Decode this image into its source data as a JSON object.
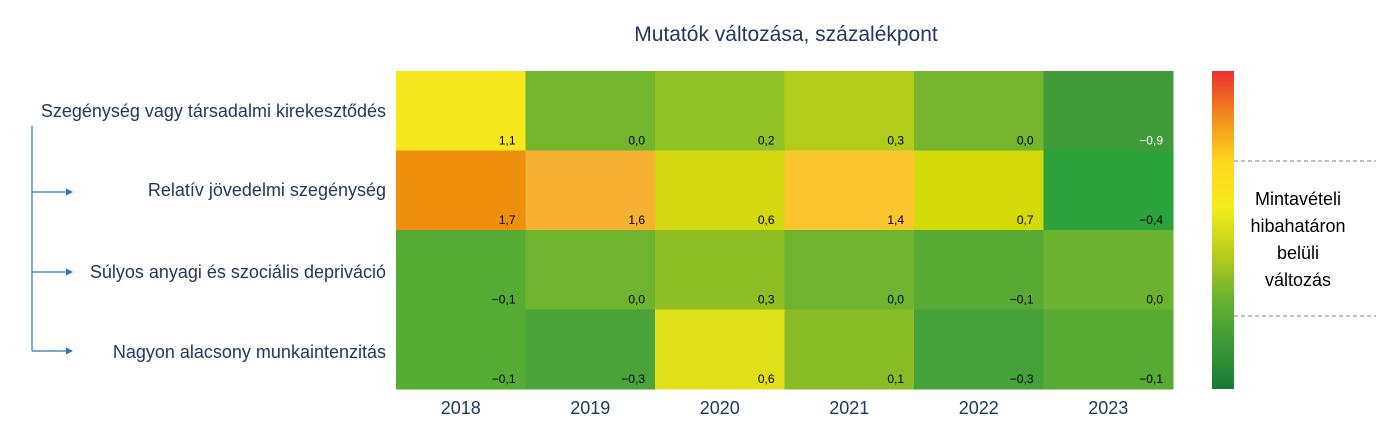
{
  "chart_data": {
    "type": "heatmap",
    "title": "Mutatók változása, százalékpont",
    "columns": [
      "2018",
      "2019",
      "2020",
      "2021",
      "2022",
      "2023"
    ],
    "rows": [
      {
        "label": "Szegénység vagy társadalmi kirekesztődés",
        "values": [
          1.1,
          0.0,
          0.2,
          0.3,
          0.0,
          -0.9
        ],
        "display": [
          "1,1",
          "0,0",
          "0,2",
          "0,3",
          "0,0",
          "−0,9"
        ]
      },
      {
        "label": "Relatív jövedelmi szegénység",
        "values": [
          1.7,
          1.6,
          0.6,
          1.4,
          0.7,
          -0.4
        ],
        "display": [
          "1,7",
          "1,6",
          "0,6",
          "1,4",
          "0,7",
          "−0,4"
        ]
      },
      {
        "label": "Súlyos anyagi és szociális depriváció",
        "values": [
          -0.1,
          0.0,
          0.3,
          0.0,
          -0.1,
          0.0
        ],
        "display": [
          "−0,1",
          "0,0",
          "0,3",
          "0,0",
          "−0,1",
          "0,0"
        ]
      },
      {
        "label": "Nagyon alacsony munkaintenzitás",
        "values": [
          -0.1,
          -0.3,
          0.6,
          0.1,
          -0.3,
          -0.1
        ],
        "display": [
          "−0,1",
          "−0,3",
          "0,6",
          "0,1",
          "−0,3",
          "−0,1"
        ]
      }
    ],
    "legend": {
      "label_lines": [
        "Mintavételi",
        "hibahatáron",
        "belüli",
        "változás"
      ],
      "placement": "right",
      "gradient": [
        "#e8312b",
        "#f28c1e",
        "#fdd81f",
        "#f6ec1c",
        "#b9cf1a",
        "#6bb22e",
        "#3c9a38",
        "#167a35"
      ]
    },
    "colors": {
      "title": "#1f3864",
      "labels": "#1f3864",
      "arrows": "#2e75b6",
      "cells": [
        [
          "#f6e81d",
          "#73b52d",
          "#91c124",
          "#b1cc1a",
          "#74b52d",
          "#3f9b37"
        ],
        [
          "#ef8f0e",
          "#f7b132",
          "#d3d810",
          "#fbc530",
          "#d4da08",
          "#2ba23b"
        ],
        [
          "#56ab34",
          "#6eb42f",
          "#8ebd24",
          "#6eb42f",
          "#58aa34",
          "#6bb32f"
        ],
        [
          "#56ab34",
          "#4aa43a",
          "#e0e01a",
          "#8abd25",
          "#45a23a",
          "#57aa34"
        ]
      ]
    }
  }
}
